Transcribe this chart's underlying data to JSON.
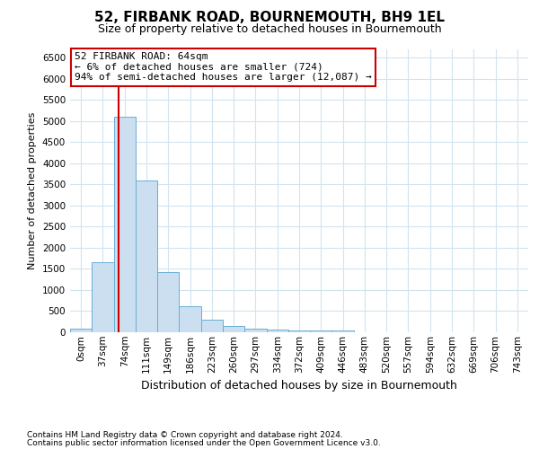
{
  "title": "52, FIRBANK ROAD, BOURNEMOUTH, BH9 1EL",
  "subtitle": "Size of property relative to detached houses in Bournemouth",
  "xlabel": "Distribution of detached houses by size in Bournemouth",
  "ylabel": "Number of detached properties",
  "bar_labels": [
    "0sqm",
    "37sqm",
    "74sqm",
    "111sqm",
    "149sqm",
    "186sqm",
    "223sqm",
    "260sqm",
    "297sqm",
    "334sqm",
    "372sqm",
    "409sqm",
    "446sqm",
    "483sqm",
    "520sqm",
    "557sqm",
    "594sqm",
    "632sqm",
    "669sqm",
    "706sqm",
    "743sqm"
  ],
  "bar_values": [
    75,
    1650,
    5100,
    3600,
    1430,
    625,
    305,
    145,
    90,
    60,
    50,
    50,
    50,
    0,
    0,
    0,
    0,
    0,
    0,
    0,
    0
  ],
  "bar_color": "#ccdff0",
  "bar_edge_color": "#6aaed6",
  "ylim": [
    0,
    6700
  ],
  "yticks": [
    0,
    500,
    1000,
    1500,
    2000,
    2500,
    3000,
    3500,
    4000,
    4500,
    5000,
    5500,
    6000,
    6500
  ],
  "subject_line_color": "#cc0000",
  "annotation_title": "52 FIRBANK ROAD: 64sqm",
  "annotation_line1": "← 6% of detached houses are smaller (724)",
  "annotation_line2": "94% of semi-detached houses are larger (12,087) →",
  "footnote1": "Contains HM Land Registry data © Crown copyright and database right 2024.",
  "footnote2": "Contains public sector information licensed under the Open Government Licence v3.0.",
  "background_color": "#ffffff",
  "grid_color": "#d0e4f0",
  "title_fontsize": 11,
  "subtitle_fontsize": 9,
  "ylabel_fontsize": 8,
  "xlabel_fontsize": 9,
  "tick_fontsize": 7.5,
  "footnote_fontsize": 6.5,
  "ann_fontsize": 8
}
